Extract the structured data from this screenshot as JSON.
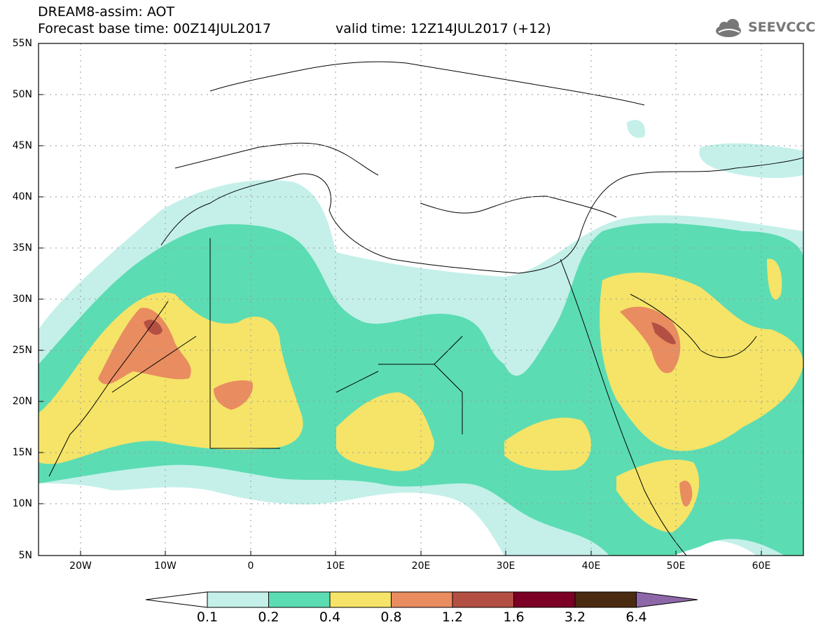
{
  "header": {
    "line1": "DREAM8-assim: AOT",
    "base_time": "Forecast base time: 00Z14JUL2017",
    "valid_time": "valid time: 12Z14JUL2017 (+12)"
  },
  "logo": {
    "text": "SEEVCCC",
    "icon": "cloud-icon"
  },
  "map": {
    "projection": "lat-lon",
    "lon_range": [
      -25,
      65
    ],
    "lat_range": [
      5,
      55
    ],
    "lat_ticks": [
      "55N",
      "50N",
      "45N",
      "40N",
      "35N",
      "30N",
      "25N",
      "20N",
      "15N",
      "10N",
      "5N"
    ],
    "lon_ticks": [
      "20W",
      "10W",
      "0",
      "10E",
      "20E",
      "30E",
      "40E",
      "50E",
      "60E"
    ],
    "grid": "dotted"
  },
  "legend": {
    "levels": [
      "0.1",
      "0.2",
      "0.4",
      "0.8",
      "1.2",
      "1.6",
      "3.2",
      "6.4"
    ],
    "colors": [
      "#ffffff",
      "#c4f0e9",
      "#5cdcb3",
      "#f5e468",
      "#e98c60",
      "#b45043",
      "#7c0025",
      "#4a2a10",
      "#8e67a9"
    ]
  }
}
